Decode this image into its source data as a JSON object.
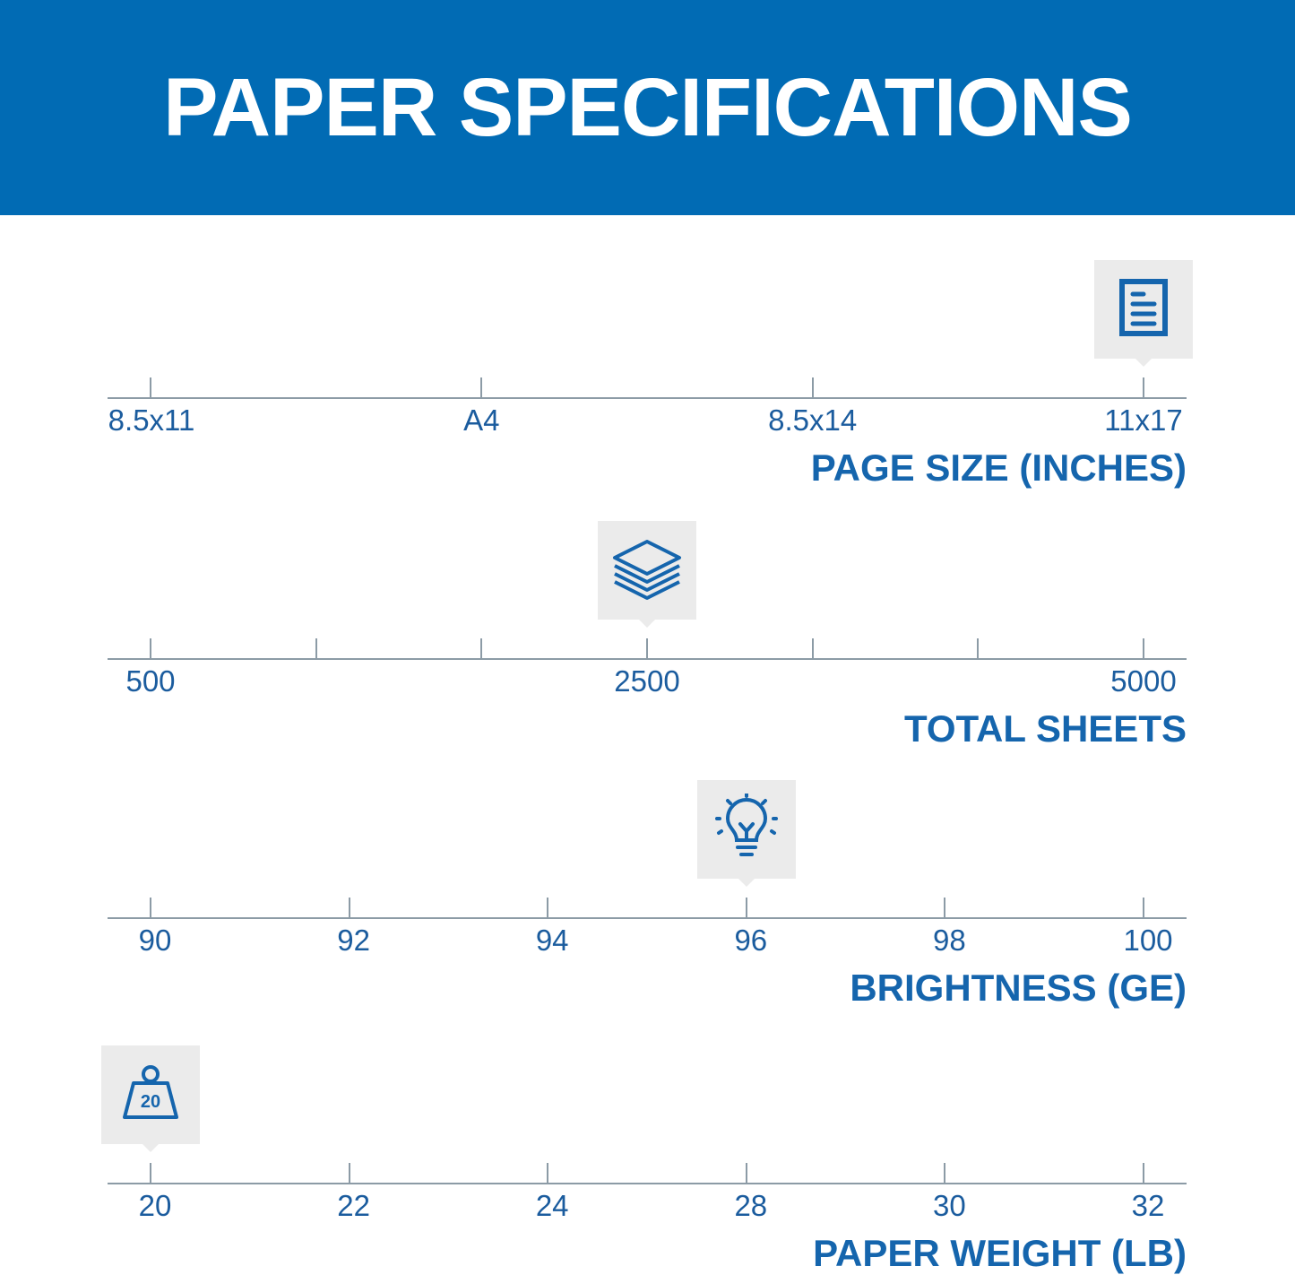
{
  "header": {
    "title": "PAPER SPECIFICATIONS",
    "color": "#016bb4"
  },
  "accent_color": "#1565ad",
  "rows": [
    {
      "title": "PAGE SIZE (INCHES)",
      "icon": "document-icon",
      "ticks": [
        "8.5x11",
        "A4",
        "8.5x14",
        "11x17"
      ],
      "selected": "11x17"
    },
    {
      "title": "TOTAL SHEETS",
      "icon": "paper-stack-icon",
      "ticks": [
        "500",
        "",
        "",
        "2500",
        "",
        "",
        "5000"
      ],
      "selected": "2500"
    },
    {
      "title": "BRIGHTNESS (GE)",
      "icon": "lightbulb-icon",
      "ticks": [
        "90",
        "92",
        "94",
        "96",
        "98",
        "100"
      ],
      "selected": "96"
    },
    {
      "title": "PAPER WEIGHT (LB)",
      "icon": "weight-icon",
      "icon_text": "20",
      "ticks": [
        "20",
        "22",
        "24",
        "28",
        "30",
        "32"
      ],
      "selected": "20"
    }
  ]
}
